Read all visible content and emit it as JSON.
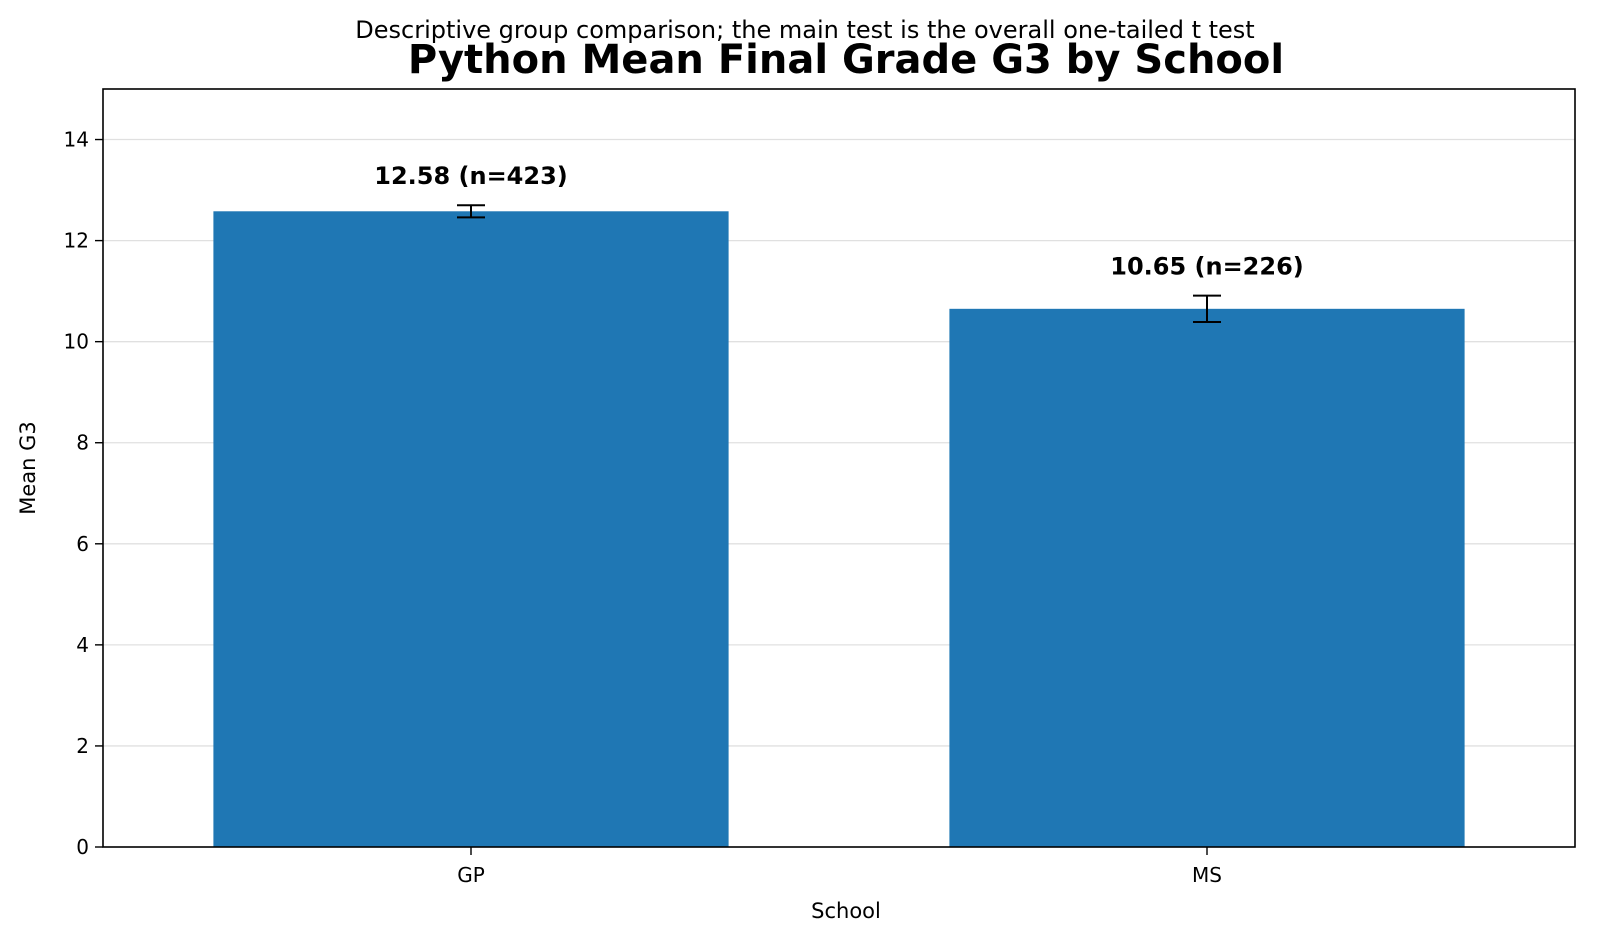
{
  "chart_data": {
    "type": "bar",
    "title": "Python Mean Final Grade G3 by School",
    "subtitle": "Descriptive group comparison; the main test is the overall one-tailed t test",
    "xlabel": "School",
    "ylabel": "Mean G3",
    "categories": [
      "GP",
      "MS"
    ],
    "values": [
      12.58,
      10.65
    ],
    "error": [
      0.12,
      0.26
    ],
    "data_labels": [
      "12.58 (n=423)",
      "10.65 (n=226)"
    ],
    "ylim": [
      0,
      15
    ],
    "yticks": [
      0,
      2,
      4,
      6,
      8,
      10,
      12,
      14
    ],
    "grid": "horizontal",
    "bar_color": "#1f77b4",
    "grid_color": "#e0e0e0"
  }
}
